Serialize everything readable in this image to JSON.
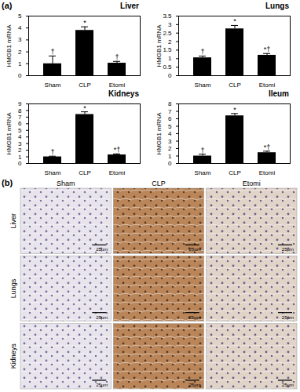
{
  "chart_data": [
    {
      "type": "bar",
      "title": "Liver",
      "categories": [
        "Sham",
        "CLP",
        "Etomi"
      ],
      "values": [
        1.0,
        3.8,
        1.05
      ],
      "errors": [
        0.65,
        0.3,
        0.15
      ],
      "annotations": [
        "†",
        "*",
        "†"
      ],
      "ylabel": "HMGB1 mRNA",
      "color": "#000000",
      "ylim": [
        0,
        5
      ],
      "yticks": [
        0,
        1,
        2,
        3,
        4,
        5
      ]
    },
    {
      "type": "bar",
      "title": "Lungs",
      "categories": [
        "Sham",
        "CLP",
        "Etomi"
      ],
      "values": [
        1.05,
        2.75,
        1.2
      ],
      "errors": [
        0.1,
        0.2,
        0.1
      ],
      "annotations": [
        "†",
        "*",
        "*†"
      ],
      "ylabel": "HMGB1 mRNA",
      "color": "#000000",
      "ylim": [
        0,
        3.5
      ],
      "yticks": [
        0,
        0.5,
        1,
        1.5,
        2,
        2.5,
        3,
        3.5
      ]
    },
    {
      "type": "bar",
      "title": "Kidneys",
      "categories": [
        "Sham",
        "CLP",
        "Etomi"
      ],
      "values": [
        1.0,
        7.4,
        1.3
      ],
      "errors": [
        0.1,
        0.4,
        0.15
      ],
      "annotations": [
        "†",
        "*",
        "*†"
      ],
      "ylabel": "HMGB1 mRNA",
      "color": "#000000",
      "ylim": [
        0,
        9
      ],
      "yticks": [
        0,
        1,
        2,
        3,
        4,
        5,
        6,
        7,
        8,
        9
      ]
    },
    {
      "type": "bar",
      "title": "Ileum",
      "categories": [
        "Sham",
        "CLP",
        "Etomi"
      ],
      "values": [
        1.0,
        6.4,
        1.45
      ],
      "errors": [
        0.25,
        0.3,
        0.2
      ],
      "annotations": [
        "†",
        "*",
        "*†"
      ],
      "ylabel": "HMGB1 mRNA",
      "color": "#000000",
      "ylim": [
        0,
        8
      ],
      "yticks": [
        0,
        1,
        2,
        3,
        4,
        5,
        6,
        7,
        8
      ]
    }
  ],
  "panel_labels": [
    "(a)",
    "(b)"
  ],
  "micrographs": {
    "rows": [
      "Liver",
      "Lungs",
      "Kidneys"
    ],
    "columns": [
      "Sham",
      "CLP",
      "Etomi"
    ],
    "scale_bar": "25µm"
  }
}
